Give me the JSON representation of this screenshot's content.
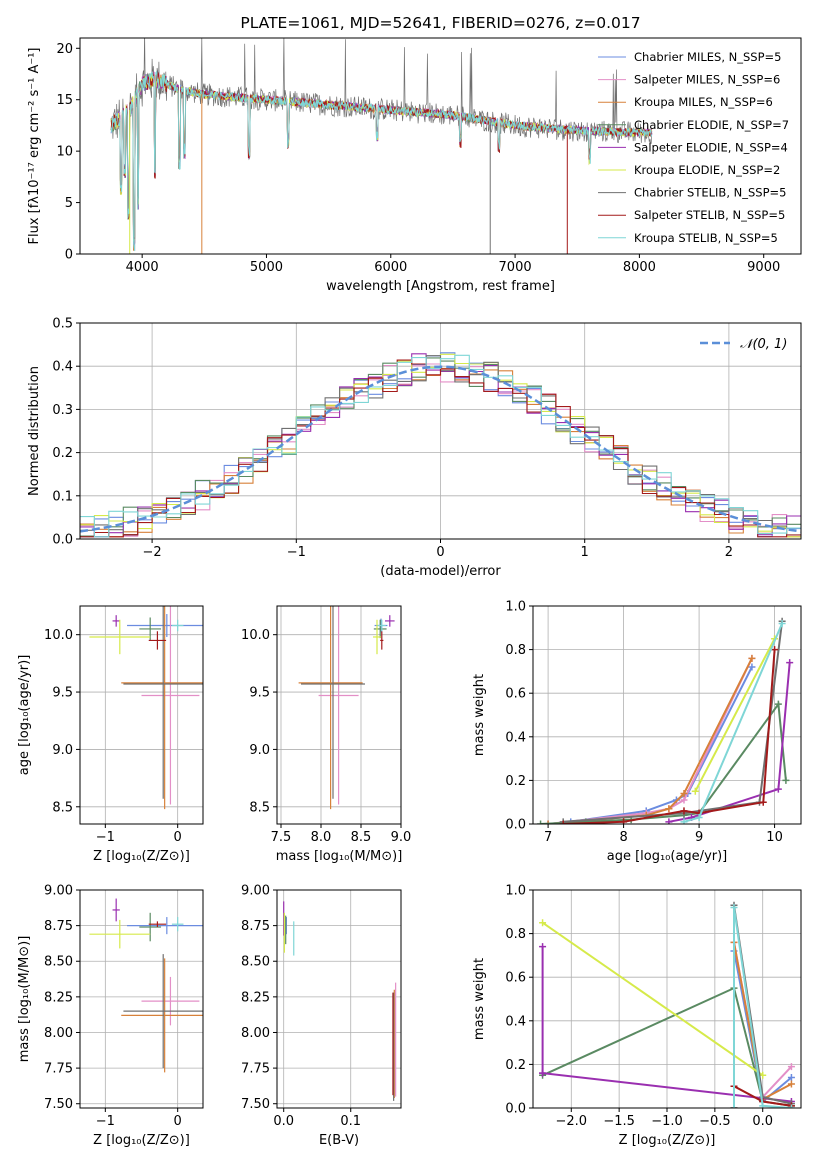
{
  "chart_data": [
    {
      "id": "spectrum",
      "type": "line",
      "title": "PLATE=1061, MJD=52641, FIBERID=0276, z=0.017",
      "xlabel": "wavelength [Angstrom, rest frame]",
      "ylabel": "Flux [fλ10⁻¹⁷ erg cm⁻² s⁻¹ A⁻¹]",
      "xlim": [
        3500,
        9300
      ],
      "ylim": [
        0,
        21
      ],
      "xticks": [
        4000,
        5000,
        6000,
        7000,
        8000,
        9000
      ],
      "yticks": [
        0,
        5,
        10,
        15,
        20
      ],
      "grid": false,
      "legend_position": "top-right",
      "data_range_x": [
        3750,
        8100
      ],
      "series": [
        {
          "name": "Chabrier MILES, N_SSP=5",
          "color": "#6b8ce0"
        },
        {
          "name": "Salpeter MILES, N_SSP=6",
          "color": "#e38fc7"
        },
        {
          "name": "Kroupa MILES, N_SSP=6",
          "color": "#d7813a"
        },
        {
          "name": "Chabrier ELODIE, N_SSP=7",
          "color": "#5a8a62"
        },
        {
          "name": "Salpeter ELODIE, N_SSP=4",
          "color": "#9a2fb0"
        },
        {
          "name": "Kroupa ELODIE, N_SSP=2",
          "color": "#d6ea4a"
        },
        {
          "name": "Chabrier STELIB, N_SSP=5",
          "color": "#707070"
        },
        {
          "name": "Salpeter STELIB, N_SSP=5",
          "color": "#a31a1a"
        },
        {
          "name": "Kroupa STELIB, N_SSP=5",
          "color": "#7fd6d6"
        }
      ],
      "continuum": [
        [
          3750,
          12.5
        ],
        [
          3900,
          14.0
        ],
        [
          4000,
          16.5
        ],
        [
          4100,
          17.0
        ],
        [
          4300,
          16.0
        ],
        [
          4500,
          15.5
        ],
        [
          5000,
          15.0
        ],
        [
          5500,
          14.5
        ],
        [
          6000,
          14.0
        ],
        [
          6500,
          13.5
        ],
        [
          7000,
          12.5
        ],
        [
          7500,
          12.0
        ],
        [
          8000,
          11.8
        ],
        [
          8100,
          11.8
        ]
      ],
      "absorption_dips": [
        [
          3830,
          6.5
        ],
        [
          3860,
          8
        ],
        [
          3890,
          4
        ],
        [
          3935,
          1
        ],
        [
          3968,
          5
        ],
        [
          4102,
          8
        ],
        [
          4300,
          9
        ],
        [
          4340,
          10
        ],
        [
          4860,
          10
        ],
        [
          5175,
          11
        ],
        [
          5890,
          11.5
        ],
        [
          6560,
          11
        ],
        [
          6870,
          10.5
        ],
        [
          7600,
          9.5
        ]
      ]
    },
    {
      "id": "residuals",
      "type": "histogram",
      "xlabel": "(data-model)/error",
      "ylabel": "Normed distribution",
      "xlim": [
        -2.5,
        2.5
      ],
      "ylim": [
        0,
        0.5
      ],
      "xticks": [
        -2,
        -1,
        0,
        1,
        2
      ],
      "yticks": [
        0.0,
        0.1,
        0.2,
        0.3,
        0.4,
        0.5
      ],
      "grid": true,
      "legend_position": "top-right",
      "reference_curve": {
        "name": "𝒩(0, 1)",
        "mean": 0,
        "sigma": 1,
        "color": "#5b8fd8"
      },
      "bin_width": 0.1
    },
    {
      "id": "age_vs_Z",
      "type": "scatter",
      "xlabel": "Z [log₁₀(Z/Z⊙)]",
      "ylabel": "age  [log₁₀(age/yr)]",
      "xlim": [
        -1.35,
        0.35
      ],
      "ylim": [
        8.35,
        10.25
      ],
      "xticks": [
        -1,
        0
      ],
      "yticks": [
        8.5,
        9.0,
        9.5,
        10.0
      ],
      "grid": true,
      "points": [
        {
          "x": -0.15,
          "y": 10.08,
          "xerr": 0.55,
          "yerr": 0.1,
          "color": "#6b8ce0"
        },
        {
          "x": -0.1,
          "y": 9.47,
          "xerr": 0.4,
          "yerr": 0.95,
          "color": "#e38fc7"
        },
        {
          "x": -0.18,
          "y": 9.58,
          "xerr": 0.6,
          "yerr": 1.1,
          "color": "#d7813a"
        },
        {
          "x": -0.38,
          "y": 10.05,
          "xerr": 0.15,
          "yerr": 0.1,
          "color": "#5a8a62"
        },
        {
          "x": -0.85,
          "y": 10.12,
          "xerr": 0.05,
          "yerr": 0.05,
          "color": "#9a2fb0"
        },
        {
          "x": -0.8,
          "y": 9.98,
          "xerr": 0.42,
          "yerr": 0.15,
          "color": "#d6ea4a"
        },
        {
          "x": -0.2,
          "y": 9.57,
          "xerr": 0.55,
          "yerr": 1.0,
          "color": "#707070"
        },
        {
          "x": -0.28,
          "y": 9.95,
          "xerr": 0.12,
          "yerr": 0.08,
          "color": "#a31a1a"
        },
        {
          "x": 0.0,
          "y": 10.08,
          "xerr": 0.08,
          "yerr": 0.05,
          "color": "#7fd6d6"
        }
      ]
    },
    {
      "id": "age_vs_mass",
      "type": "scatter",
      "xlabel": "mass [log₁₀(M/M⊙)]",
      "ylabel": "",
      "xlim": [
        7.45,
        9.0
      ],
      "ylim": [
        8.35,
        10.25
      ],
      "xticks": [
        7.5,
        8.0,
        8.5,
        9.0
      ],
      "yticks": [
        8.5,
        9.0,
        9.5,
        10.0
      ],
      "grid": true,
      "points": [
        {
          "x": 8.75,
          "y": 10.08,
          "xerr": 0.08,
          "yerr": 0.06,
          "color": "#6b8ce0"
        },
        {
          "x": 8.22,
          "y": 9.47,
          "xerr": 0.25,
          "yerr": 0.95,
          "color": "#e38fc7"
        },
        {
          "x": 8.12,
          "y": 9.58,
          "xerr": 0.4,
          "yerr": 1.1,
          "color": "#d7813a"
        },
        {
          "x": 8.74,
          "y": 10.05,
          "xerr": 0.08,
          "yerr": 0.08,
          "color": "#5a8a62"
        },
        {
          "x": 8.86,
          "y": 10.12,
          "xerr": 0.06,
          "yerr": 0.05,
          "color": "#9a2fb0"
        },
        {
          "x": 8.7,
          "y": 9.98,
          "xerr": 0.05,
          "yerr": 0.15,
          "color": "#d6ea4a"
        },
        {
          "x": 8.15,
          "y": 9.57,
          "xerr": 0.4,
          "yerr": 1.0,
          "color": "#707070"
        },
        {
          "x": 8.76,
          "y": 9.95,
          "xerr": 0.02,
          "yerr": 0.08,
          "color": "#a31a1a"
        },
        {
          "x": 8.76,
          "y": 10.08,
          "xerr": 0.05,
          "yerr": 0.05,
          "color": "#7fd6d6"
        }
      ]
    },
    {
      "id": "weight_vs_age",
      "type": "line",
      "xlabel": "age  [log₁₀(age/yr)]",
      "ylabel": "mass weight",
      "xlim": [
        6.8,
        10.35
      ],
      "ylim": [
        0,
        1.0
      ],
      "xticks": [
        7,
        8,
        9,
        10
      ],
      "yticks": [
        0.0,
        0.2,
        0.4,
        0.6,
        0.8,
        1.0
      ],
      "grid": true,
      "series": [
        {
          "name": "Chabrier MILES",
          "color": "#6b8ce0",
          "x": [
            7.0,
            7.3,
            8.3,
            8.7,
            8.85,
            9.7
          ],
          "y": [
            0.0,
            0.01,
            0.06,
            0.11,
            0.14,
            0.72
          ]
        },
        {
          "name": "Salpeter MILES",
          "color": "#e38fc7",
          "x": [
            7.0,
            8.3,
            8.6,
            8.8,
            9.7
          ],
          "y": [
            0.0,
            0.05,
            0.07,
            0.11,
            0.76
          ]
        },
        {
          "name": "Kroupa MILES",
          "color": "#d7813a",
          "x": [
            7.0,
            8.3,
            8.6,
            8.8,
            9.7
          ],
          "y": [
            0.0,
            0.04,
            0.07,
            0.14,
            0.76
          ]
        },
        {
          "name": "Chabrier ELODIE",
          "color": "#5a8a62",
          "x": [
            6.9,
            7.5,
            8.1,
            8.8,
            9.0,
            10.05,
            10.15
          ],
          "y": [
            0.0,
            0.01,
            0.02,
            0.04,
            0.05,
            0.55,
            0.2
          ]
        },
        {
          "name": "Salpeter ELODIE",
          "color": "#9a2fb0",
          "x": [
            8.6,
            8.9,
            10.05,
            10.2
          ],
          "y": [
            0.01,
            0.03,
            0.16,
            0.74
          ]
        },
        {
          "name": "Kroupa ELODIE",
          "color": "#d6ea4a",
          "x": [
            8.95,
            10.0
          ],
          "y": [
            0.15,
            0.85
          ]
        },
        {
          "name": "Chabrier STELIB",
          "color": "#707070",
          "x": [
            7.2,
            8.8,
            9.8,
            10.1
          ],
          "y": [
            0.01,
            0.05,
            0.1,
            0.93
          ]
        },
        {
          "name": "Salpeter STELIB",
          "color": "#a31a1a",
          "x": [
            7.2,
            8.0,
            8.8,
            9.0,
            9.85,
            10.0
          ],
          "y": [
            0.0,
            0.01,
            0.06,
            0.05,
            0.1,
            0.8
          ]
        },
        {
          "name": "Kroupa STELIB",
          "color": "#7fd6d6",
          "x": [
            8.8,
            9.0,
            10.1
          ],
          "y": [
            0.01,
            0.03,
            0.92
          ]
        }
      ]
    },
    {
      "id": "mass_vs_Z",
      "type": "scatter",
      "xlabel": "Z [log₁₀(Z/Z⊙)]",
      "ylabel": "mass [log₁₀(M/M⊙)]",
      "xlim": [
        -1.35,
        0.35
      ],
      "ylim": [
        7.47,
        9.0
      ],
      "xticks": [
        -1,
        0
      ],
      "yticks": [
        7.5,
        7.75,
        8.0,
        8.25,
        8.5,
        8.75,
        9.0
      ],
      "grid": true,
      "points": [
        {
          "x": -0.15,
          "y": 8.75,
          "xerr": 0.55,
          "yerr": 0.06,
          "color": "#6b8ce0"
        },
        {
          "x": -0.1,
          "y": 8.22,
          "xerr": 0.4,
          "yerr": 0.17,
          "color": "#e38fc7"
        },
        {
          "x": -0.18,
          "y": 8.12,
          "xerr": 0.6,
          "yerr": 0.4,
          "color": "#d7813a"
        },
        {
          "x": -0.38,
          "y": 8.74,
          "xerr": 0.15,
          "yerr": 0.1,
          "color": "#5a8a62"
        },
        {
          "x": -0.85,
          "y": 8.86,
          "xerr": 0.05,
          "yerr": 0.08,
          "color": "#9a2fb0"
        },
        {
          "x": -0.8,
          "y": 8.69,
          "xerr": 0.42,
          "yerr": 0.1,
          "color": "#d6ea4a"
        },
        {
          "x": -0.2,
          "y": 8.15,
          "xerr": 0.55,
          "yerr": 0.4,
          "color": "#707070"
        },
        {
          "x": -0.28,
          "y": 8.76,
          "xerr": 0.12,
          "yerr": 0.02,
          "color": "#a31a1a"
        },
        {
          "x": 0.0,
          "y": 8.76,
          "xerr": 0.08,
          "yerr": 0.05,
          "color": "#7fd6d6"
        }
      ]
    },
    {
      "id": "mass_vs_ebv",
      "type": "scatter",
      "xlabel": "E(B-V)",
      "ylabel": "",
      "xlim": [
        -0.01,
        0.175
      ],
      "ylim": [
        7.47,
        9.0
      ],
      "xticks": [
        0.0,
        0.1
      ],
      "yticks": [
        7.5,
        7.75,
        8.0,
        8.25,
        8.5,
        8.75,
        9.0
      ],
      "grid": true,
      "points": [
        {
          "x": 0.004,
          "y": 8.75,
          "xerr": 0.0,
          "yerr": 0.06,
          "color": "#6b8ce0"
        },
        {
          "x": 0.167,
          "y": 7.95,
          "xerr": 0.0,
          "yerr": 0.4,
          "color": "#e38fc7"
        },
        {
          "x": 0.165,
          "y": 7.92,
          "xerr": 0.0,
          "yerr": 0.38,
          "color": "#d7813a"
        },
        {
          "x": 0.003,
          "y": 8.72,
          "xerr": 0.0,
          "yerr": 0.1,
          "color": "#5a8a62"
        },
        {
          "x": 0.0,
          "y": 8.8,
          "xerr": 0.0,
          "yerr": 0.12,
          "color": "#9a2fb0"
        },
        {
          "x": 0.001,
          "y": 8.7,
          "xerr": 0.0,
          "yerr": 0.14,
          "color": "#d6ea4a"
        },
        {
          "x": 0.164,
          "y": 7.9,
          "xerr": 0.0,
          "yerr": 0.38,
          "color": "#707070"
        },
        {
          "x": 0.163,
          "y": 7.92,
          "xerr": 0.0,
          "yerr": 0.36,
          "color": "#a31a1a"
        },
        {
          "x": 0.015,
          "y": 8.66,
          "xerr": 0.0,
          "yerr": 0.12,
          "color": "#7fd6d6"
        }
      ]
    },
    {
      "id": "weight_vs_Z",
      "type": "line",
      "xlabel": "Z [log₁₀(Z/Z⊙)]",
      "ylabel": "mass weight",
      "xlim": [
        -2.4,
        0.4
      ],
      "ylim": [
        0,
        1.0
      ],
      "xticks": [
        -2.0,
        -1.5,
        -1.0,
        -0.5,
        0.0
      ],
      "yticks": [
        0.0,
        0.2,
        0.4,
        0.6,
        0.8,
        1.0
      ],
      "grid": true,
      "series": [
        {
          "name": "Chabrier MILES",
          "color": "#6b8ce0",
          "x": [
            -0.3,
            -0.3,
            0.0,
            0.3
          ],
          "y": [
            0.0,
            0.72,
            0.03,
            0.14
          ]
        },
        {
          "name": "Salpeter MILES",
          "color": "#e38fc7",
          "x": [
            -0.3,
            -0.3,
            0.0,
            0.3
          ],
          "y": [
            0.0,
            0.76,
            0.05,
            0.19
          ]
        },
        {
          "name": "Kroupa MILES",
          "color": "#d7813a",
          "x": [
            -0.3,
            -0.3,
            0.0,
            0.3
          ],
          "y": [
            0.0,
            0.76,
            0.04,
            0.11
          ]
        },
        {
          "name": "Chabrier ELODIE",
          "color": "#5a8a62",
          "x": [
            -2.3,
            -0.3,
            0.0,
            0.3
          ],
          "y": [
            0.15,
            0.55,
            0.03,
            0.01
          ]
        },
        {
          "name": "Salpeter ELODIE",
          "color": "#9a2fb0",
          "x": [
            -2.3,
            -2.3,
            -2.3,
            0.3
          ],
          "y": [
            0.74,
            0.16,
            0.16,
            0.03
          ]
        },
        {
          "name": "Kroupa ELODIE",
          "color": "#d6ea4a",
          "x": [
            -2.3,
            0.0
          ],
          "y": [
            0.85,
            0.15
          ]
        },
        {
          "name": "Chabrier STELIB",
          "color": "#707070",
          "x": [
            -0.3,
            -0.3,
            0.0,
            0.3
          ],
          "y": [
            0.0,
            0.93,
            0.05,
            0.02
          ]
        },
        {
          "name": "Salpeter STELIB",
          "color": "#a31a1a",
          "x": [
            -0.3,
            -0.3,
            0.0,
            0.3
          ],
          "y": [
            0.0,
            0.1,
            0.03,
            0.01
          ]
        },
        {
          "name": "Kroupa STELIB",
          "color": "#7fd6d6",
          "x": [
            -0.3,
            -0.3,
            0.0,
            0.3
          ],
          "y": [
            0.0,
            0.92,
            0.01,
            0.0
          ]
        }
      ]
    }
  ]
}
